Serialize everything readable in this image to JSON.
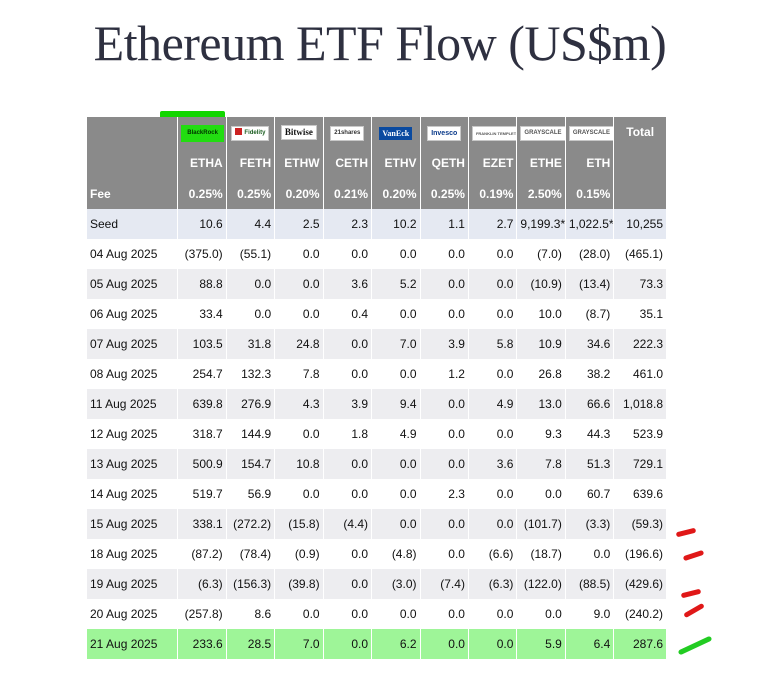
{
  "title": "Ethereum ETF Flow (US$m)",
  "issuers": [
    {
      "logo": "BlackRock",
      "icon": "blackrock-logo"
    },
    {
      "logo": "Fidelity",
      "icon": "fidelity-logo"
    },
    {
      "logo": "Bitwise",
      "icon": "bitwise-logo"
    },
    {
      "logo": "21shares",
      "icon": "21shares-logo"
    },
    {
      "logo": "VanEck",
      "icon": "vaneck-logo"
    },
    {
      "logo": "Invesco",
      "icon": "invesco-logo"
    },
    {
      "logo": "FRANKLIN TEMPLETON",
      "icon": "franklin-templeton-logo"
    },
    {
      "logo": "GRAYSCALE",
      "icon": "grayscale-logo"
    },
    {
      "logo": "GRAYSCALE",
      "icon": "grayscale-logo"
    }
  ],
  "total_label": "Total",
  "tickers": [
    "ETHA",
    "FETH",
    "ETHW",
    "CETH",
    "ETHV",
    "QETH",
    "EZET",
    "ETHE",
    "ETH"
  ],
  "fee": {
    "label": "Fee",
    "values": [
      "0.25%",
      "0.25%",
      "0.20%",
      "0.21%",
      "0.20%",
      "0.25%",
      "0.19%",
      "2.50%",
      "0.15%"
    ]
  },
  "rows": [
    {
      "label": "Seed",
      "values": [
        "10.6",
        "4.4",
        "2.5",
        "2.3",
        "10.2",
        "1.1",
        "2.7",
        "9,199.3*",
        "1,022.5*"
      ],
      "total": "10,255"
    },
    {
      "label": "04 Aug 2025",
      "values": [
        "(375.0)",
        "(55.1)",
        "0.0",
        "0.0",
        "0.0",
        "0.0",
        "0.0",
        "(7.0)",
        "(28.0)"
      ],
      "total": "(465.1)"
    },
    {
      "label": "05 Aug 2025",
      "values": [
        "88.8",
        "0.0",
        "0.0",
        "3.6",
        "5.2",
        "0.0",
        "0.0",
        "(10.9)",
        "(13.4)"
      ],
      "total": "73.3"
    },
    {
      "label": "06 Aug 2025",
      "values": [
        "33.4",
        "0.0",
        "0.0",
        "0.4",
        "0.0",
        "0.0",
        "0.0",
        "10.0",
        "(8.7)"
      ],
      "total": "35.1"
    },
    {
      "label": "07 Aug 2025",
      "values": [
        "103.5",
        "31.8",
        "24.8",
        "0.0",
        "7.0",
        "3.9",
        "5.8",
        "10.9",
        "34.6"
      ],
      "total": "222.3"
    },
    {
      "label": "08 Aug 2025",
      "values": [
        "254.7",
        "132.3",
        "7.8",
        "0.0",
        "0.0",
        "1.2",
        "0.0",
        "26.8",
        "38.2"
      ],
      "total": "461.0"
    },
    {
      "label": "11 Aug 2025",
      "values": [
        "639.8",
        "276.9",
        "4.3",
        "3.9",
        "9.4",
        "0.0",
        "4.9",
        "13.0",
        "66.6"
      ],
      "total": "1,018.8"
    },
    {
      "label": "12 Aug 2025",
      "values": [
        "318.7",
        "144.9",
        "0.0",
        "1.8",
        "4.9",
        "0.0",
        "0.0",
        "9.3",
        "44.3"
      ],
      "total": "523.9"
    },
    {
      "label": "13 Aug 2025",
      "values": [
        "500.9",
        "154.7",
        "10.8",
        "0.0",
        "0.0",
        "0.0",
        "3.6",
        "7.8",
        "51.3"
      ],
      "total": "729.1"
    },
    {
      "label": "14 Aug 2025",
      "values": [
        "519.7",
        "56.9",
        "0.0",
        "0.0",
        "0.0",
        "2.3",
        "0.0",
        "0.0",
        "60.7"
      ],
      "total": "639.6"
    },
    {
      "label": "15 Aug 2025",
      "values": [
        "338.1",
        "(272.2)",
        "(15.8)",
        "(4.4)",
        "0.0",
        "0.0",
        "0.0",
        "(101.7)",
        "(3.3)"
      ],
      "total": "(59.3)"
    },
    {
      "label": "18 Aug 2025",
      "values": [
        "(87.2)",
        "(78.4)",
        "(0.9)",
        "0.0",
        "(4.8)",
        "0.0",
        "(6.6)",
        "(18.7)",
        "0.0"
      ],
      "total": "(196.6)"
    },
    {
      "label": "19 Aug 2025",
      "values": [
        "(6.3)",
        "(156.3)",
        "(39.8)",
        "0.0",
        "(3.0)",
        "(7.4)",
        "(6.3)",
        "(122.0)",
        "(88.5)"
      ],
      "total": "(429.6)"
    },
    {
      "label": "20 Aug 2025",
      "values": [
        "(257.8)",
        "8.6",
        "0.0",
        "0.0",
        "0.0",
        "0.0",
        "0.0",
        "0.0",
        "9.0"
      ],
      "total": "(240.2)"
    },
    {
      "label": "21 Aug 2025",
      "values": [
        "233.6",
        "28.5",
        "7.0",
        "0.0",
        "6.2",
        "0.0",
        "0.0",
        "5.9",
        "6.4"
      ],
      "total": "287.6"
    }
  ],
  "colors": {
    "header_bg": "#8a8a8a",
    "negative": "#d01010",
    "highlight_row": "#9ef598",
    "blackrock_highlight": "#11d600",
    "red_mark": "#e01818",
    "green_mark": "#22cc22"
  }
}
